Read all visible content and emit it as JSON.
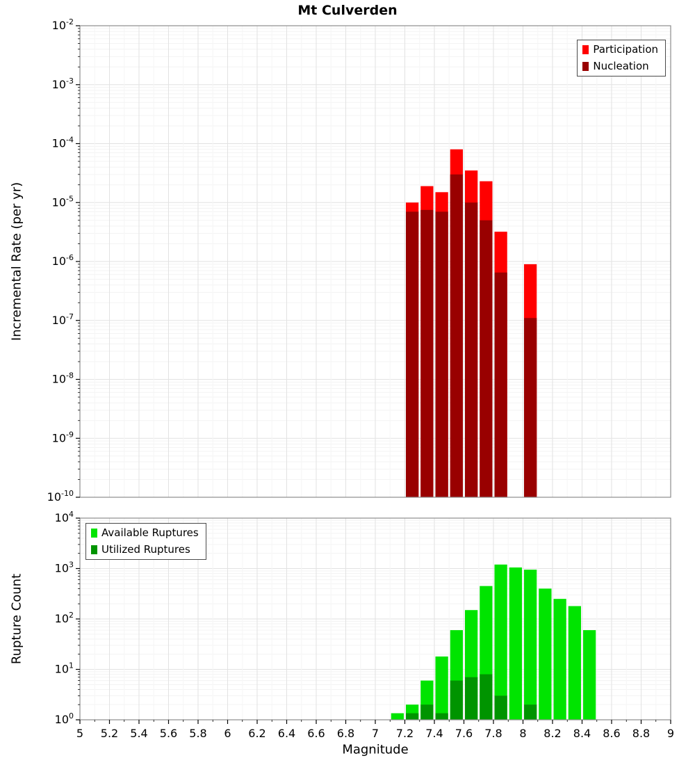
{
  "title": "Mt Culverden",
  "chart_data": [
    {
      "type": "bar",
      "title": "Mt Culverden",
      "xlabel": "",
      "ylabel": "Incremental Rate (per yr)",
      "yscale": "log",
      "ylim": [
        1e-10,
        0.01
      ],
      "ytick_exponents": [
        -10,
        -9,
        -8,
        -7,
        -6,
        -5,
        -4,
        -3,
        -2
      ],
      "xlim": [
        5,
        9
      ],
      "xtick_step": 0.2,
      "xtick_labels": [
        "5",
        "5.2",
        "5.4",
        "5.6",
        "5.8",
        "6",
        "6.2",
        "6.4",
        "6.6",
        "6.8",
        "7",
        "7.2",
        "7.4",
        "7.6",
        "7.8",
        "8",
        "8.2",
        "8.4",
        "8.6",
        "8.8",
        "9"
      ],
      "bin_width": 0.1,
      "grid": true,
      "legend_position": "top-right",
      "series": [
        {
          "name": "Participation",
          "color": "#ff0000",
          "bins": [
            7.2,
            7.3,
            7.4,
            7.5,
            7.6,
            7.7,
            7.8,
            8.0
          ],
          "values": [
            1e-05,
            1.9e-05,
            1.5e-05,
            8e-05,
            3.5e-05,
            2.3e-05,
            3.2e-06,
            9e-07
          ]
        },
        {
          "name": "Nucleation",
          "color": "#990000",
          "bins": [
            7.2,
            7.3,
            7.4,
            7.5,
            7.6,
            7.7,
            7.8,
            8.0
          ],
          "values": [
            7e-06,
            7.5e-06,
            7e-06,
            3e-05,
            1e-05,
            5e-06,
            6.5e-07,
            1.1e-07
          ]
        }
      ]
    },
    {
      "type": "bar",
      "title": "",
      "xlabel": "Magnitude",
      "ylabel": "Rupture Count",
      "yscale": "log",
      "ylim": [
        1,
        10000
      ],
      "ytick_exponents": [
        0,
        1,
        2,
        3,
        4
      ],
      "xlim": [
        5,
        9
      ],
      "xtick_step": 0.2,
      "xtick_labels": [
        "5",
        "5.2",
        "5.4",
        "5.6",
        "5.8",
        "6",
        "6.2",
        "6.4",
        "6.6",
        "6.8",
        "7",
        "7.2",
        "7.4",
        "7.6",
        "7.8",
        "8",
        "8.2",
        "8.4",
        "8.6",
        "8.8",
        "9"
      ],
      "bin_width": 0.1,
      "grid": true,
      "legend_position": "top-left",
      "series": [
        {
          "name": "Available Ruptures",
          "color": "#00e400",
          "bins": [
            7.1,
            7.2,
            7.3,
            7.4,
            7.5,
            7.6,
            7.7,
            7.8,
            7.9,
            8.0,
            8.1,
            8.2,
            8.3,
            8.4
          ],
          "values": [
            1,
            2,
            6,
            18,
            60,
            150,
            450,
            1200,
            1050,
            950,
            400,
            250,
            180,
            60
          ]
        },
        {
          "name": "Utilized Ruptures",
          "color": "#009400",
          "bins": [
            7.2,
            7.3,
            7.4,
            7.5,
            7.6,
            7.7,
            7.8,
            8.0
          ],
          "values": [
            1,
            2,
            1,
            6,
            7,
            8,
            3,
            2
          ]
        }
      ]
    }
  ]
}
